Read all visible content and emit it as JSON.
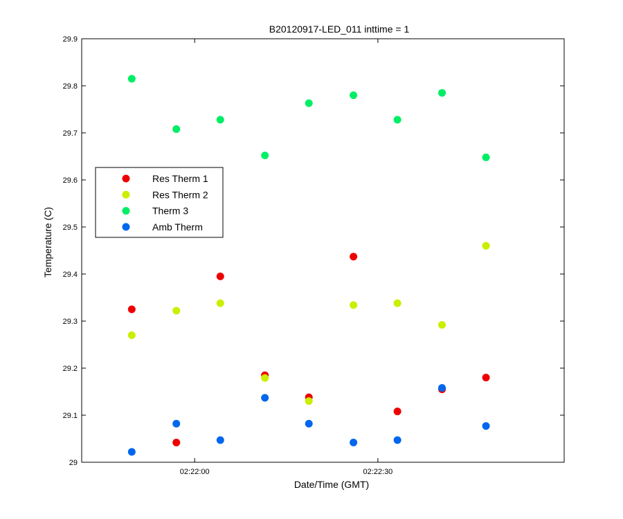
{
  "chart_data": {
    "type": "scatter",
    "title": "B20120917-LED_011 inttime = 1",
    "xlabel": "Date/Time (GMT)",
    "ylabel": "Temperature (C)",
    "x_ticks": [
      "02:22:00",
      "02:22:30"
    ],
    "y_ticks": [
      "29",
      "29.1",
      "29.2",
      "29.3",
      "29.4",
      "29.5",
      "29.6",
      "29.7",
      "29.8",
      "29.9"
    ],
    "ylim": [
      29,
      29.9
    ],
    "xlim_seconds": [
      -18.5,
      60.5
    ],
    "x_tick_seconds": [
      0,
      30
    ],
    "legend_position": "middle-left",
    "grid": false,
    "x_seconds": [
      -10.3,
      -3,
      4.2,
      11.5,
      18.7,
      26,
      33.2,
      40.5,
      47.7
    ],
    "series": [
      {
        "name": "Res Therm 1",
        "color": "#ee0000",
        "values": [
          29.325,
          29.042,
          29.395,
          29.185,
          29.138,
          29.437,
          29.108,
          29.155,
          29.18
        ]
      },
      {
        "name": "Res Therm 2",
        "color": "#ccee00",
        "values": [
          29.27,
          29.322,
          29.338,
          29.179,
          29.13,
          29.334,
          29.338,
          29.292,
          29.46
        ]
      },
      {
        "name": "Therm 3",
        "color": "#00ee66",
        "values": [
          29.815,
          29.708,
          29.728,
          29.652,
          29.763,
          29.78,
          29.728,
          29.785,
          29.648
        ]
      },
      {
        "name": "Amb Therm",
        "color": "#0066ee",
        "values": [
          29.022,
          29.082,
          29.047,
          29.137,
          29.082,
          29.042,
          29.047,
          29.158,
          29.077
        ]
      }
    ]
  }
}
